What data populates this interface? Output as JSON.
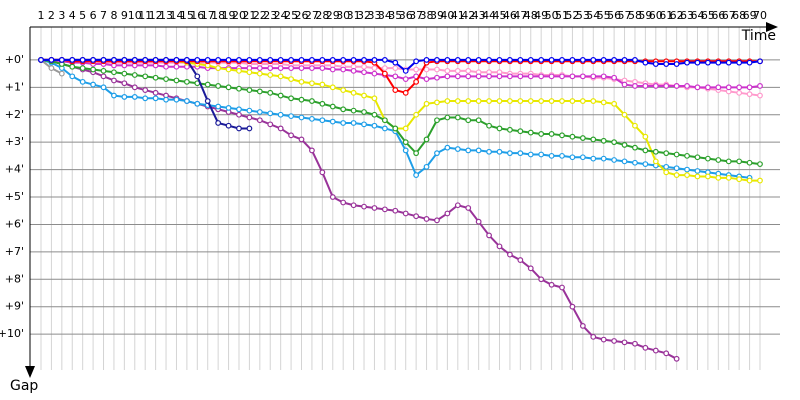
{
  "chart_data": {
    "type": "line",
    "x_label": "Time",
    "y_label": "Gap",
    "x": [
      1,
      2,
      3,
      4,
      5,
      6,
      7,
      8,
      9,
      10,
      11,
      12,
      13,
      14,
      15,
      16,
      17,
      18,
      19,
      20,
      21,
      22,
      23,
      24,
      25,
      26,
      27,
      28,
      29,
      30,
      31,
      32,
      33,
      34,
      35,
      36,
      37,
      38,
      39,
      40,
      41,
      42,
      43,
      44,
      45,
      46,
      47,
      48,
      49,
      50,
      51,
      52,
      53,
      54,
      55,
      56,
      57,
      58,
      59,
      60,
      61,
      62,
      63,
      64,
      65,
      66,
      67,
      68,
      69,
      70
    ],
    "xlim": [
      1,
      70
    ],
    "ylim": [
      -1.2,
      11.6
    ],
    "yticks": [
      {
        "value": 0,
        "label": "+0'"
      },
      {
        "value": 1,
        "label": "+1'"
      },
      {
        "value": 2,
        "label": "+2'"
      },
      {
        "value": 3,
        "label": "+3'"
      },
      {
        "value": 4,
        "label": "+4'"
      },
      {
        "value": 5,
        "label": "+5'"
      },
      {
        "value": 6,
        "label": "+6'"
      },
      {
        "value": 7,
        "label": "+7'"
      },
      {
        "value": 8,
        "label": "+8'"
      },
      {
        "value": 9,
        "label": "+9'"
      },
      {
        "value": 10,
        "label": "+10'"
      }
    ],
    "grid": true,
    "series": [
      {
        "color": "#ff99cc",
        "values": [
          0,
          0,
          0,
          0.05,
          0.05,
          0.05,
          0.1,
          0.1,
          0.1,
          0.1,
          0.1,
          0.1,
          0.1,
          0.1,
          0.1,
          0.1,
          0.1,
          0.1,
          0.1,
          0.1,
          0.15,
          0.15,
          0.15,
          0.15,
          0.2,
          0.2,
          0.2,
          0.2,
          0.2,
          0.25,
          0.25,
          0.25,
          0.3,
          0.3,
          0.3,
          0.35,
          0.35,
          0.35,
          0.35,
          0.4,
          0.4,
          0.4,
          0.45,
          0.45,
          0.45,
          0.5,
          0.5,
          0.5,
          0.55,
          0.55,
          0.55,
          0.6,
          0.6,
          0.65,
          0.65,
          0.7,
          0.75,
          0.8,
          0.85,
          0.9,
          0.9,
          0.95,
          1.0,
          1.0,
          1.05,
          1.1,
          1.15,
          1.2,
          1.25,
          1.3
        ]
      },
      {
        "color": "#cc33cc",
        "values": [
          0,
          0,
          0.05,
          0.1,
          0.1,
          0.15,
          0.15,
          0.2,
          0.2,
          0.2,
          0.2,
          0.2,
          0.25,
          0.25,
          0.25,
          0.25,
          0.3,
          0.3,
          0.3,
          0.3,
          0.3,
          0.3,
          0.3,
          0.3,
          0.3,
          0.3,
          0.3,
          0.3,
          0.35,
          0.35,
          0.4,
          0.45,
          0.5,
          0.55,
          0.6,
          0.7,
          0.6,
          0.7,
          0.65,
          0.6,
          0.6,
          0.6,
          0.6,
          0.6,
          0.6,
          0.6,
          0.6,
          0.6,
          0.6,
          0.6,
          0.6,
          0.6,
          0.6,
          0.6,
          0.6,
          0.65,
          0.9,
          0.95,
          0.95,
          0.95,
          0.95,
          0.95,
          0.95,
          1.0,
          1.0,
          1.0,
          1.0,
          1.0,
          1.0,
          0.95
        ]
      },
      {
        "color": "#993399",
        "values": [
          0,
          0.05,
          0.15,
          0.25,
          0.35,
          0.45,
          0.6,
          0.75,
          0.85,
          1.0,
          1.1,
          1.2,
          1.3,
          1.4,
          1.5,
          1.6,
          1.7,
          1.8,
          1.9,
          2.0,
          2.1,
          2.2,
          2.35,
          2.5,
          2.75,
          2.9,
          3.3,
          4.1,
          5.0,
          5.2,
          5.3,
          5.35,
          5.4,
          5.45,
          5.5,
          5.6,
          5.7,
          5.8,
          5.85,
          5.6,
          5.3,
          5.4,
          5.9,
          6.4,
          6.8,
          7.1,
          7.3,
          7.6,
          8.0,
          8.2,
          8.3,
          9.0,
          9.7,
          10.1,
          10.2,
          10.25,
          10.3,
          10.35,
          10.5,
          10.6,
          10.7,
          10.9,
          null,
          null,
          null,
          null,
          null,
          null,
          null,
          null
        ]
      },
      {
        "color": "#1e9ee8",
        "values": [
          0,
          0.1,
          0.3,
          0.6,
          0.8,
          0.9,
          1.0,
          1.3,
          1.35,
          1.35,
          1.4,
          1.4,
          1.45,
          1.45,
          1.5,
          1.6,
          1.65,
          1.7,
          1.75,
          1.8,
          1.85,
          1.9,
          1.95,
          2.0,
          2.05,
          2.1,
          2.15,
          2.2,
          2.25,
          2.3,
          2.3,
          2.35,
          2.4,
          2.5,
          2.6,
          3.3,
          4.2,
          3.9,
          3.4,
          3.2,
          3.25,
          3.3,
          3.3,
          3.35,
          3.35,
          3.4,
          3.4,
          3.45,
          3.45,
          3.5,
          3.5,
          3.55,
          3.55,
          3.6,
          3.6,
          3.65,
          3.7,
          3.75,
          3.8,
          3.85,
          3.9,
          3.95,
          4.0,
          4.05,
          4.1,
          4.15,
          4.2,
          4.25,
          4.3,
          null
        ]
      },
      {
        "color": "#e8e800",
        "values": [
          0,
          0,
          0,
          0,
          0,
          0,
          0,
          0,
          0,
          0,
          0,
          0,
          0,
          0.05,
          0.1,
          0.15,
          0.2,
          0.3,
          0.35,
          0.4,
          0.45,
          0.5,
          0.55,
          0.6,
          0.7,
          0.8,
          0.85,
          0.9,
          1.0,
          1.1,
          1.2,
          1.3,
          1.4,
          2.2,
          2.5,
          2.5,
          2.0,
          1.6,
          1.55,
          1.5,
          1.5,
          1.5,
          1.5,
          1.5,
          1.5,
          1.5,
          1.5,
          1.5,
          1.5,
          1.5,
          1.5,
          1.5,
          1.5,
          1.5,
          1.55,
          1.6,
          2.0,
          2.4,
          2.8,
          3.7,
          4.1,
          4.2,
          4.2,
          4.25,
          4.25,
          4.3,
          4.3,
          4.35,
          4.4,
          4.4
        ]
      },
      {
        "color": "#2ca02c",
        "values": [
          0,
          0.05,
          0.15,
          0.25,
          0.3,
          0.35,
          0.4,
          0.45,
          0.5,
          0.55,
          0.6,
          0.65,
          0.7,
          0.75,
          0.8,
          0.85,
          0.9,
          0.95,
          1.0,
          1.05,
          1.1,
          1.15,
          1.2,
          1.3,
          1.4,
          1.45,
          1.5,
          1.6,
          1.7,
          1.8,
          1.85,
          1.9,
          2.0,
          2.2,
          2.5,
          3.0,
          3.4,
          2.9,
          2.2,
          2.1,
          2.1,
          2.2,
          2.2,
          2.4,
          2.5,
          2.55,
          2.6,
          2.65,
          2.7,
          2.7,
          2.75,
          2.8,
          2.85,
          2.9,
          2.95,
          3.0,
          3.1,
          3.2,
          3.3,
          3.35,
          3.4,
          3.45,
          3.5,
          3.55,
          3.6,
          3.65,
          3.7,
          3.7,
          3.75,
          3.8
        ]
      },
      {
        "color": "#ff0000",
        "values": [
          0,
          0,
          0,
          0.05,
          0.05,
          0.05,
          0.05,
          0.05,
          0.05,
          0.05,
          0.05,
          0.05,
          0.05,
          0.05,
          0.05,
          0.05,
          0.05,
          0.05,
          0.05,
          0.05,
          0.05,
          0.05,
          0.05,
          0.05,
          0.05,
          0.05,
          0.05,
          0.05,
          0.05,
          0.05,
          0.05,
          0.05,
          0.1,
          0.5,
          1.1,
          1.2,
          0.8,
          0.1,
          0.05,
          0.05,
          0.05,
          0.05,
          0.05,
          0.05,
          0.05,
          0.05,
          0.05,
          0.05,
          0.05,
          0.05,
          0.05,
          0.05,
          0.05,
          0.05,
          0.05,
          0.05,
          0.05,
          0.05,
          0.05,
          0.05,
          0.05,
          0.05,
          0.05,
          0.05,
          0.05,
          0.05,
          0.05,
          0.05,
          0.05,
          0.05
        ]
      },
      {
        "color": "#999999",
        "values": [
          0,
          0.3,
          0.5,
          null,
          null,
          null,
          null,
          null,
          null,
          null,
          null,
          null,
          null,
          null,
          null,
          null,
          null,
          null,
          null,
          null,
          null,
          null,
          null,
          null,
          null,
          null,
          null,
          null,
          null,
          null,
          null,
          null,
          null,
          null,
          null,
          null,
          null,
          null,
          null,
          null,
          null,
          null,
          null,
          null,
          null,
          null,
          null,
          null,
          null,
          null,
          null,
          null,
          null,
          null,
          null,
          null,
          null,
          null,
          null,
          null,
          null,
          null,
          null,
          null,
          null,
          null,
          null,
          null,
          null,
          null
        ]
      },
      {
        "color": "#1a1a99",
        "values": [
          0,
          0,
          0,
          0,
          0,
          0,
          0,
          0,
          0,
          0,
          0,
          0,
          0,
          0,
          0,
          0.6,
          1.5,
          2.3,
          2.4,
          2.5,
          2.5,
          null,
          null,
          null,
          null,
          null,
          null,
          null,
          null,
          null,
          null,
          null,
          null,
          null,
          null,
          null,
          null,
          null,
          null,
          null,
          null,
          null,
          null,
          null,
          null,
          null,
          null,
          null,
          null,
          null,
          null,
          null,
          null,
          null,
          null,
          null,
          null,
          null,
          null,
          null,
          null,
          null,
          null,
          null,
          null,
          null,
          null,
          null,
          null,
          null
        ]
      },
      {
        "color": "#0000ee",
        "values": [
          0,
          0,
          0,
          0,
          0,
          0,
          0,
          0,
          0,
          0,
          0,
          0,
          0,
          0,
          0,
          0,
          0,
          0,
          0,
          0,
          0,
          0,
          0,
          0,
          0,
          0,
          0,
          0,
          0,
          0,
          0,
          0,
          0,
          0,
          0.1,
          0.4,
          0.05,
          0,
          0,
          0,
          0,
          0,
          0,
          0,
          0,
          0,
          0,
          0,
          0,
          0,
          0,
          0,
          0,
          0,
          0,
          0,
          0,
          0,
          0.1,
          0.15,
          0.15,
          0.15,
          0.1,
          0.1,
          0.1,
          0.1,
          0.1,
          0.1,
          0.1,
          0.05
        ]
      }
    ]
  }
}
